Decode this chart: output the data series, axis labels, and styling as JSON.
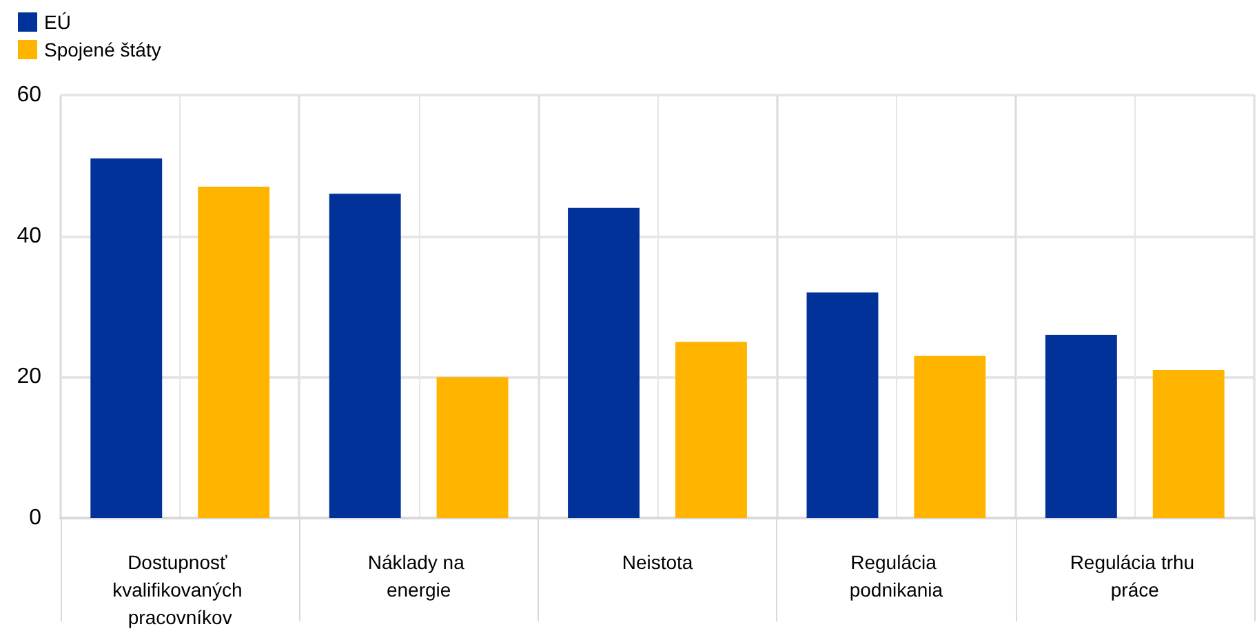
{
  "chart_data": {
    "type": "bar",
    "categories": [
      "Dostupnosť kvalifikovaných pracovníkov",
      "Náklady na energie",
      "Neistota",
      "Regulácia podnikania",
      "Regulácia trhu práce"
    ],
    "series": [
      {
        "name": "EÚ",
        "color": "#003299",
        "values": [
          51,
          46,
          44,
          32,
          26
        ]
      },
      {
        "name": "Spojené štáty",
        "color": "#ffb400",
        "values": [
          47,
          20,
          25,
          23,
          21
        ]
      }
    ],
    "ylim": [
      0,
      60
    ],
    "yticks": [
      0,
      20,
      40,
      60
    ],
    "grid": true,
    "legend": "top left"
  }
}
